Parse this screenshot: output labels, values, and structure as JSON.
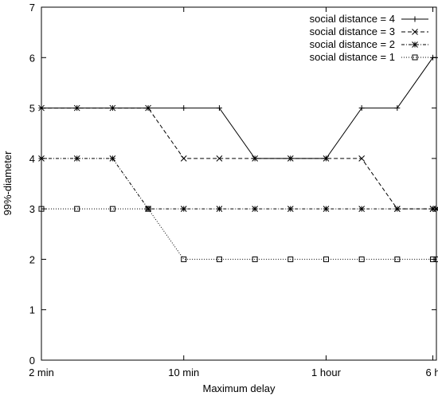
{
  "chart_data": {
    "type": "line",
    "title": "",
    "xlabel": "Maximum delay",
    "ylabel": "99%-diameter",
    "x_ticks": [
      "2 min",
      "10 min",
      "1 hour",
      "6 h"
    ],
    "x_tick_positions": [
      0,
      4,
      8,
      11
    ],
    "xlim": [
      0,
      11.1
    ],
    "ylim": [
      0,
      7
    ],
    "y_ticks": [
      "0",
      "1",
      "2",
      "3",
      "4",
      "5",
      "6",
      "7"
    ],
    "grid": false,
    "legend_position": "top-right",
    "x": [
      0,
      1,
      2,
      3,
      4,
      5,
      6,
      7,
      8,
      9,
      10,
      11,
      11.1
    ],
    "series": [
      {
        "name": "social distance = 4",
        "marker": "plus",
        "dash": "solid",
        "values": [
          5,
          5,
          5,
          5,
          5,
          5,
          4,
          4,
          4,
          5,
          5,
          6,
          6
        ]
      },
      {
        "name": "social distance = 3",
        "marker": "cross",
        "dash": "dashed",
        "values": [
          5,
          5,
          5,
          5,
          4,
          4,
          4,
          4,
          4,
          4,
          3,
          3,
          3
        ]
      },
      {
        "name": "social distance = 2",
        "marker": "star",
        "dash": "dotted-dashed",
        "values": [
          4,
          4,
          4,
          3,
          3,
          3,
          3,
          3,
          3,
          3,
          3,
          3,
          3
        ]
      },
      {
        "name": "social distance = 1",
        "marker": "square",
        "dash": "dotted",
        "values": [
          3,
          3,
          3,
          3,
          2,
          2,
          2,
          2,
          2,
          2,
          2,
          2,
          2
        ]
      }
    ]
  }
}
